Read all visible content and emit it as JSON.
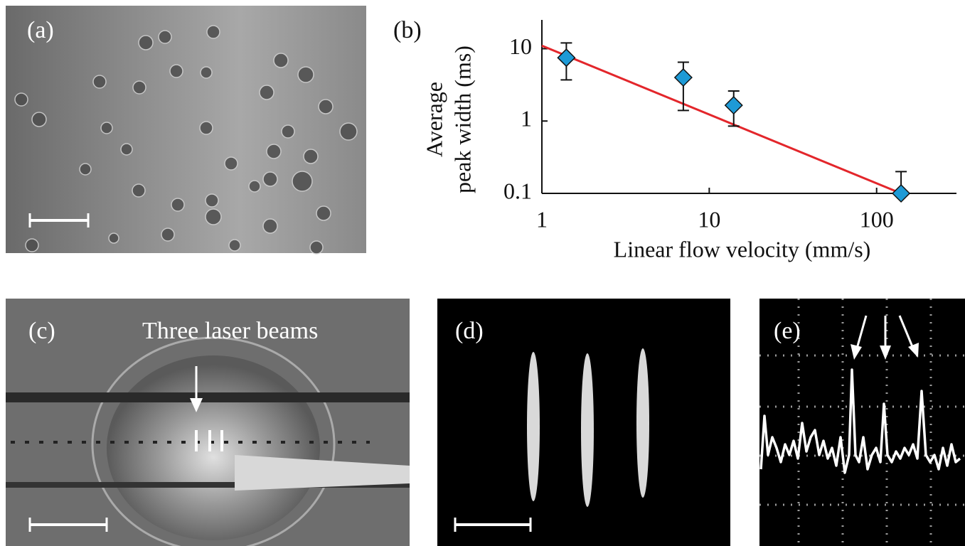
{
  "panels": [
    {
      "label": "(a)"
    },
    {
      "label": "(c)",
      "annotation": "Three laser beams"
    },
    {
      "label": "(d)"
    },
    {
      "label": "(e)"
    }
  ],
  "chart_data": {
    "type": "scatter",
    "panel_label": "(b)",
    "xlabel": "Linear flow velocity (mm/s)",
    "ylabel": [
      "Average",
      "peak width (ms)"
    ],
    "xscale": "log",
    "yscale": "log",
    "xlim": [
      1,
      300
    ],
    "ylim": [
      0.1,
      25
    ],
    "xticks": [
      1,
      10,
      100
    ],
    "yticks": [
      0.1,
      1,
      10
    ],
    "series": [
      {
        "kind": "points",
        "marker": "diamond",
        "color": "#1e9ad6",
        "x": [
          1.4,
          7,
          14,
          140
        ],
        "values": [
          7.5,
          4,
          1.65,
          0.1
        ],
        "error_low": [
          3.7,
          1.4,
          0.85,
          0.1
        ],
        "error_high": [
          12,
          6.5,
          2.6,
          0.2
        ]
      },
      {
        "kind": "line",
        "color": "#e3262b",
        "x": [
          1,
          140
        ],
        "values": [
          11,
          0.1
        ]
      }
    ]
  }
}
